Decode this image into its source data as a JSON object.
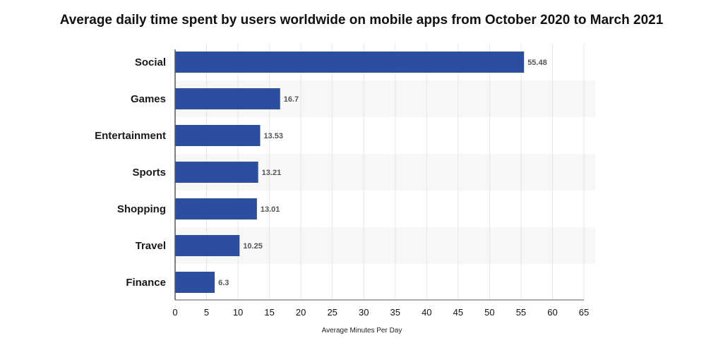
{
  "chart_data": {
    "type": "bar",
    "orientation": "horizontal",
    "title": "Average daily time spent by users worldwide on mobile apps from October 2020 to March 2021",
    "categories": [
      "Social",
      "Games",
      "Entertainment",
      "Sports",
      "Shopping",
      "Travel",
      "Finance"
    ],
    "values": [
      55.48,
      16.7,
      13.53,
      13.21,
      13.01,
      10.25,
      6.3
    ],
    "xlabel": "Average Minutes Per Day",
    "ylabel": "",
    "xlim": [
      0,
      65
    ],
    "xticks": [
      0,
      5,
      10,
      15,
      20,
      25,
      30,
      35,
      40,
      45,
      50,
      55,
      60,
      65
    ],
    "grid": true,
    "legend": "none",
    "colors": {
      "bar": "#2b4ea0",
      "band": "#f7f7f7",
      "grid": "#e6e6e6",
      "axis": "#555555"
    }
  }
}
